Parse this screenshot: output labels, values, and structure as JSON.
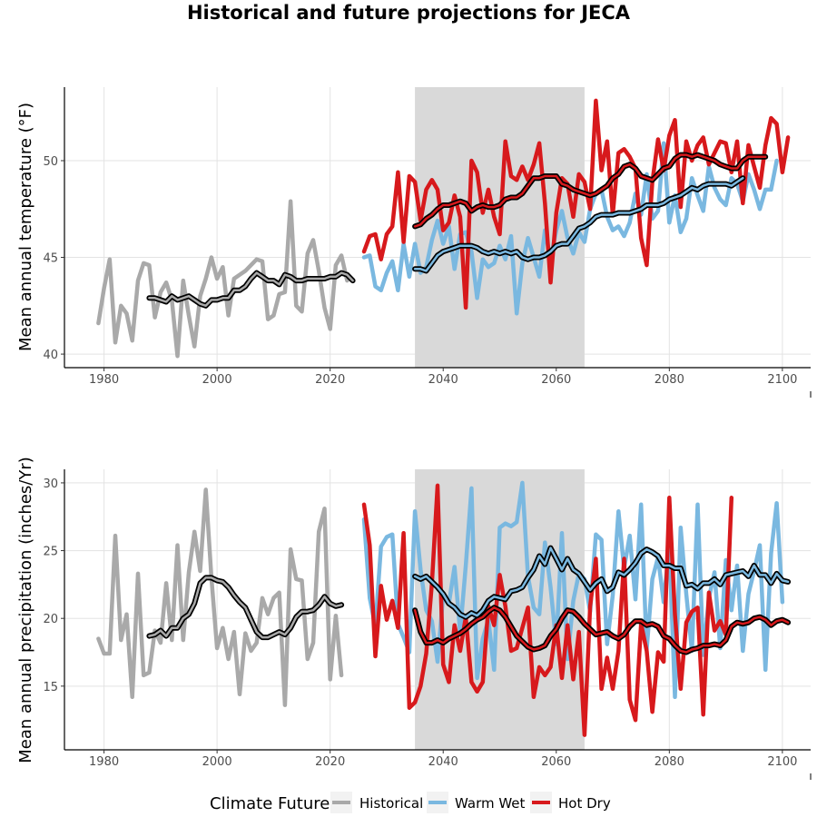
{
  "figure": {
    "title": "Historical and future projections for JECA"
  },
  "colors": {
    "historical": "#a9a9a9",
    "warm_wet": "#7ab8e0",
    "hot_dry": "#d7191c",
    "smooth_outline": "#000000",
    "shade": "#d9d9d9",
    "grid": "#e3e3e3"
  },
  "legend": {
    "title": "Climate Future",
    "items": [
      "Historical",
      "Warm Wet",
      "Hot Dry"
    ]
  },
  "chart_data": [
    {
      "type": "line",
      "ylabel": "Mean annual temperature (°F)",
      "xlabel": "",
      "xlim": [
        1973,
        2105
      ],
      "ylim": [
        39.3,
        53.8
      ],
      "xticks": [
        1980,
        2000,
        2020,
        2040,
        2060,
        2080,
        2100
      ],
      "yticks": [
        40,
        45,
        50
      ],
      "shaded_period": [
        2035,
        2065
      ],
      "series": [
        {
          "name": "Historical",
          "x_start": 1979,
          "values": [
            41.6,
            43.4,
            44.9,
            40.6,
            42.5,
            42.1,
            40.7,
            43.8,
            44.7,
            44.6,
            41.9,
            43.2,
            43.7,
            42.8,
            39.9,
            43.8,
            42.0,
            40.4,
            43.0,
            43.9,
            45.0,
            43.9,
            44.5,
            42.0,
            43.9,
            44.1,
            44.3,
            44.6,
            44.9,
            44.8,
            41.8,
            42.0,
            43.1,
            43.2,
            47.9,
            42.5,
            42.2,
            45.2,
            45.9,
            44.3,
            42.4,
            41.3,
            44.6,
            45.1,
            43.8
          ]
        },
        {
          "name": "Warm Wet",
          "x_start": 2026,
          "values": [
            45.0,
            45.1,
            43.5,
            43.3,
            44.2,
            44.8,
            43.3,
            45.7,
            44.0,
            45.7,
            44.2,
            44.5,
            45.9,
            46.9,
            45.7,
            46.6,
            44.4,
            46.2,
            46.3,
            45.3,
            42.9,
            44.9,
            44.5,
            44.7,
            45.6,
            44.9,
            46.1,
            42.1,
            44.7,
            46.0,
            45.0,
            44.0,
            46.4,
            44.9,
            46.4,
            47.4,
            46.0,
            45.2,
            46.3,
            45.8,
            47.5,
            48.3,
            48.5,
            47.1,
            46.4,
            46.6,
            46.1,
            46.8,
            48.3,
            47.2,
            49.3,
            47.0,
            47.4,
            50.9,
            46.8,
            48.2,
            46.3,
            47.0,
            49.1,
            48.2,
            47.4,
            49.7,
            48.6,
            48.0,
            47.7,
            49.1,
            48.8,
            47.9,
            49.3,
            48.5,
            47.5,
            48.5,
            48.5,
            50.0
          ]
        },
        {
          "name": "Hot Dry",
          "x_start": 2026,
          "values": [
            45.3,
            46.1,
            46.2,
            44.9,
            46.2,
            46.6,
            49.4,
            45.8,
            49.2,
            48.9,
            46.9,
            48.5,
            49.0,
            48.5,
            46.4,
            46.8,
            48.2,
            47.1,
            42.4,
            50.0,
            49.4,
            47.3,
            48.5,
            47.1,
            46.2,
            51.0,
            49.2,
            49.0,
            49.7,
            49.0,
            49.8,
            50.9,
            47.8,
            43.7,
            47.3,
            49.1,
            48.8,
            47.1,
            49.3,
            48.9,
            47.5,
            53.1,
            49.5,
            51.0,
            47.2,
            50.4,
            50.6,
            50.2,
            49.6,
            46.0,
            44.6,
            48.9,
            51.1,
            49.5,
            51.3,
            52.1,
            47.6,
            51.0,
            50.0,
            50.8,
            51.2,
            49.8,
            50.4,
            51.0,
            50.9,
            49.4,
            51.0,
            47.8,
            50.8,
            49.7,
            48.6,
            50.8,
            52.2,
            51.9,
            49.4,
            51.2
          ]
        }
      ],
      "smoothed": [
        {
          "name": "Historical",
          "x_start": 1988,
          "values": [
            42.9,
            42.9,
            42.8,
            42.7,
            43.0,
            42.8,
            42.9,
            43.0,
            42.8,
            42.6,
            42.5,
            42.8,
            42.8,
            42.9,
            42.9,
            43.3,
            43.3,
            43.5,
            43.9,
            44.2,
            44.0,
            43.8,
            43.8,
            43.6,
            44.1,
            44.0,
            43.8,
            43.8,
            43.9,
            43.9,
            43.9,
            43.9,
            44.0,
            44.0,
            44.2,
            44.1,
            43.8
          ]
        },
        {
          "name": "Warm Wet",
          "x_start": 2035,
          "values": [
            44.4,
            44.4,
            44.3,
            44.7,
            45.1,
            45.3,
            45.4,
            45.5,
            45.6,
            45.6,
            45.6,
            45.5,
            45.3,
            45.2,
            45.3,
            45.2,
            45.3,
            45.2,
            45.3,
            45.0,
            44.9,
            45.0,
            45.0,
            45.1,
            45.3,
            45.6,
            45.7,
            45.7,
            46.1,
            46.5,
            46.6,
            46.8,
            47.1,
            47.2,
            47.2,
            47.2,
            47.3,
            47.3,
            47.3,
            47.4,
            47.5,
            47.7,
            47.7,
            47.7,
            47.8,
            48.0,
            48.1,
            48.2,
            48.4,
            48.6,
            48.5,
            48.7,
            48.8,
            48.8,
            48.8,
            48.8,
            48.7,
            48.9,
            49.1
          ]
        },
        {
          "name": "Hot Dry",
          "x_start": 2035,
          "values": [
            46.6,
            46.7,
            47.0,
            47.2,
            47.5,
            47.7,
            47.7,
            47.8,
            47.9,
            47.8,
            47.4,
            47.6,
            47.7,
            47.6,
            47.6,
            47.7,
            48.0,
            48.1,
            48.1,
            48.3,
            48.7,
            49.1,
            49.1,
            49.2,
            49.2,
            49.2,
            48.8,
            48.7,
            48.5,
            48.4,
            48.3,
            48.2,
            48.3,
            48.5,
            48.7,
            49.1,
            49.3,
            49.7,
            49.8,
            49.6,
            49.2,
            49.1,
            49.0,
            49.3,
            49.6,
            49.7,
            50.1,
            50.3,
            50.3,
            50.2,
            50.3,
            50.2,
            50.1,
            50.0,
            49.8,
            49.7,
            49.6,
            49.6,
            50.0,
            50.2,
            50.2,
            50.2,
            50.2
          ]
        }
      ]
    },
    {
      "type": "line",
      "ylabel": "Mean annual precipitation (inches/Yr)",
      "xlabel": "",
      "xlim": [
        1973,
        2105
      ],
      "ylim": [
        10.3,
        31.0
      ],
      "xticks": [
        1980,
        2000,
        2020,
        2040,
        2060,
        2080,
        2100
      ],
      "yticks": [
        15,
        20,
        25,
        30
      ],
      "shaded_period": [
        2035,
        2065
      ],
      "series": [
        {
          "name": "Historical",
          "x_start": 1979,
          "values": [
            18.5,
            17.4,
            17.4,
            26.1,
            18.4,
            20.3,
            14.2,
            23.3,
            15.8,
            16.0,
            19.1,
            18.2,
            22.6,
            18.4,
            25.4,
            18.4,
            23.4,
            26.4,
            23.5,
            29.5,
            23.0,
            17.8,
            19.3,
            17.0,
            19.0,
            14.4,
            18.9,
            17.6,
            18.2,
            21.5,
            20.3,
            21.5,
            21.9,
            13.6,
            25.1,
            22.9,
            22.8,
            17.0,
            18.2,
            26.4,
            28.1,
            15.5,
            20.2,
            15.8
          ]
        },
        {
          "name": "Warm Wet",
          "x_start": 2026,
          "values": [
            27.3,
            21.5,
            19.4,
            25.3,
            26.0,
            26.2,
            19.6,
            18.6,
            17.5,
            27.9,
            23.6,
            20.6,
            19.8,
            16.8,
            21.7,
            21.1,
            23.8,
            19.0,
            23.9,
            29.6,
            15.6,
            18.5,
            19.9,
            16.2,
            26.7,
            27.0,
            26.8,
            27.1,
            30.0,
            23.1,
            20.8,
            20.3,
            25.6,
            22.3,
            18.1,
            26.3,
            17.0,
            21.3,
            23.3,
            22.9,
            20.5,
            26.2,
            25.8,
            18.1,
            21.7,
            27.9,
            23.7,
            26.1,
            21.4,
            28.4,
            17.7,
            22.9,
            24.5,
            21.2,
            25.5,
            14.2,
            26.7,
            21.8,
            17.6,
            28.4,
            17.3,
            21.5,
            23.4,
            17.8,
            24.3,
            20.6,
            23.9,
            17.6,
            21.8,
            23.5,
            25.4,
            16.2,
            24.8,
            28.5,
            21.2
          ]
        },
        {
          "name": "Hot Dry",
          "x_start": 2026,
          "values": [
            28.4,
            25.4,
            17.2,
            22.4,
            19.9,
            21.3,
            19.3,
            26.3,
            13.4,
            13.8,
            15.0,
            17.4,
            22.6,
            29.8,
            16.6,
            15.3,
            19.5,
            17.6,
            20.1,
            15.3,
            14.6,
            15.3,
            20.9,
            19.5,
            23.2,
            20.9,
            17.6,
            17.8,
            19.3,
            20.8,
            14.2,
            16.4,
            15.8,
            16.4,
            19.5,
            15.6,
            19.5,
            15.5,
            19.0,
            11.4,
            20.9,
            24.4,
            14.8,
            17.1,
            14.8,
            17.6,
            24.4,
            14.0,
            12.5,
            19.6,
            17.6,
            13.1,
            17.5,
            16.8,
            28.9,
            20.3,
            14.8,
            19.7,
            20.5,
            20.8,
            12.9,
            21.9,
            19.1,
            19.8,
            18.8,
            28.9
          ]
        }
      ],
      "smoothed": [
        {
          "name": "Historical",
          "x_start": 1988,
          "values": [
            18.7,
            18.8,
            19.1,
            18.7,
            19.3,
            19.3,
            20.0,
            20.3,
            21.1,
            22.6,
            23.0,
            23.0,
            22.8,
            22.7,
            22.3,
            21.7,
            21.2,
            20.8,
            19.9,
            19.0,
            18.6,
            18.6,
            18.8,
            19.0,
            18.8,
            19.3,
            20.1,
            20.5,
            20.5,
            20.6,
            21.0,
            21.6,
            21.1,
            20.9,
            21.0
          ]
        },
        {
          "name": "Warm Wet",
          "x_start": 2035,
          "values": [
            23.1,
            22.9,
            23.1,
            22.7,
            22.3,
            21.8,
            21.1,
            20.8,
            20.3,
            20.1,
            20.4,
            20.2,
            20.6,
            21.3,
            21.6,
            21.5,
            21.4,
            22.0,
            22.1,
            22.3,
            23.0,
            23.6,
            24.6,
            24.0,
            25.2,
            24.4,
            23.6,
            24.4,
            23.6,
            23.3,
            22.7,
            22.1,
            22.6,
            22.9,
            22.0,
            22.3,
            23.4,
            23.2,
            23.6,
            24.1,
            24.8,
            25.1,
            24.9,
            24.6,
            23.9,
            23.9,
            23.7,
            23.7,
            22.4,
            22.5,
            22.2,
            22.6,
            22.6,
            22.9,
            22.5,
            23.2,
            23.3,
            23.4,
            23.5,
            23.1,
            23.9,
            23.2,
            23.2,
            22.6,
            23.3,
            22.8,
            22.7
          ]
        },
        {
          "name": "Hot Dry",
          "x_start": 2035,
          "values": [
            20.6,
            19.0,
            18.2,
            18.2,
            18.4,
            18.2,
            18.5,
            18.7,
            18.9,
            19.2,
            19.6,
            19.9,
            20.1,
            20.5,
            20.8,
            20.6,
            20.1,
            19.4,
            18.7,
            18.3,
            17.9,
            17.7,
            17.8,
            18.0,
            18.7,
            19.2,
            20.0,
            20.6,
            20.5,
            20.1,
            19.6,
            19.2,
            18.8,
            18.9,
            19.0,
            18.7,
            18.5,
            18.8,
            19.4,
            19.8,
            19.8,
            19.5,
            19.6,
            19.4,
            18.7,
            18.5,
            18.0,
            17.6,
            17.5,
            17.7,
            17.8,
            18.0,
            18.0,
            18.1,
            18.0,
            18.4,
            19.4,
            19.7,
            19.6,
            19.7,
            20.0,
            20.1,
            19.9,
            19.5,
            19.8,
            19.9,
            19.7
          ]
        }
      ]
    }
  ]
}
